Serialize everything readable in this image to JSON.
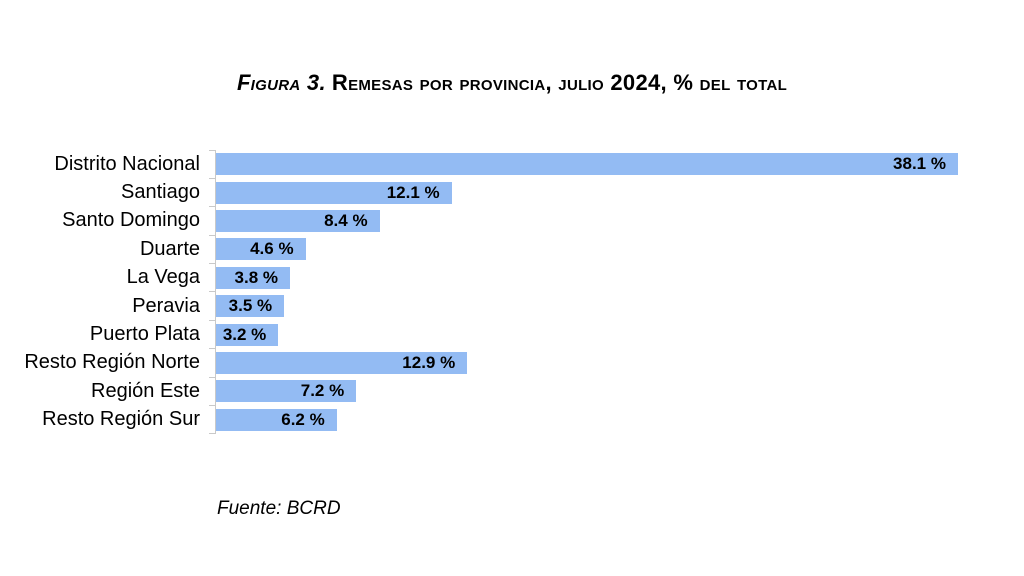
{
  "page": {
    "title_prefix": "Figura 3.",
    "title_rest": "Remesas por provincia, julio 2024, % del total",
    "source": "Fuente: BCRD"
  },
  "colors": {
    "bar_fill": "#93bbf3",
    "axis": "#c9c9c9",
    "text": "#000000",
    "background": "#ffffff"
  },
  "chart_data": {
    "type": "bar",
    "orientation": "horizontal",
    "title": "Figura 3. Remesas por provincia, julio 2024, % del total",
    "xlabel": "",
    "ylabel": "",
    "categories": [
      "Distrito Nacional",
      "Santiago",
      "Santo Domingo",
      "Duarte",
      "La Vega",
      "Peravia",
      "Puerto Plata",
      "Resto Región Norte",
      "Región Este",
      "Resto Región Sur"
    ],
    "values": [
      38.1,
      12.1,
      8.4,
      4.6,
      3.8,
      3.5,
      3.2,
      12.9,
      7.2,
      6.2
    ],
    "value_labels": [
      "38.1 %",
      "12.1 %",
      "8.4 %",
      "4.6 %",
      "3.8 %",
      "3.5 %",
      "3.2 %",
      "12.9 %",
      "7.2 %",
      "6.2 %"
    ],
    "xlim": [
      0,
      40
    ],
    "grid": false,
    "legend": null,
    "value_labels_position": "inside-end",
    "source": "Fuente: BCRD"
  }
}
